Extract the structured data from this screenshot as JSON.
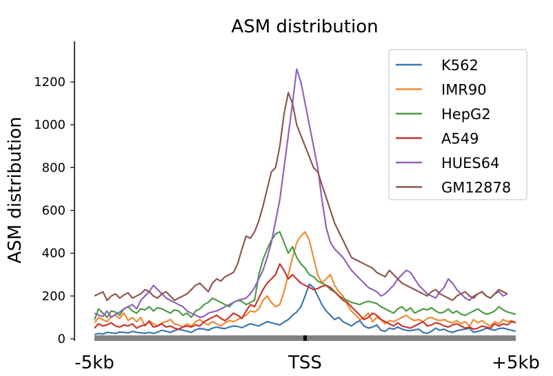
{
  "chart_data": {
    "type": "line",
    "title": "ASM distribution",
    "xlabel": "",
    "ylabel": "ASM distribution",
    "xlim": [
      -100,
      100
    ],
    "ylim": [
      0,
      1380
    ],
    "yticks": [
      0,
      200,
      400,
      600,
      800,
      1000,
      1200
    ],
    "xticks": [
      {
        "value": -100,
        "label": "-5kb"
      },
      {
        "value": 0,
        "label": "TSS"
      },
      {
        "value": 100,
        "label": "+5kb"
      }
    ],
    "x": {
      "start": -100,
      "end": 100,
      "step": 2
    },
    "legend_position": "top-right",
    "series": [
      {
        "name": "K562",
        "color": "#3a75b0",
        "values": [
          20,
          25,
          22,
          30,
          28,
          25,
          32,
          30,
          28,
          35,
          30,
          28,
          26,
          30,
          25,
          32,
          40,
          35,
          30,
          38,
          45,
          40,
          35,
          30,
          42,
          48,
          45,
          40,
          50,
          55,
          50,
          48,
          55,
          60,
          58,
          52,
          62,
          70,
          65,
          60,
          70,
          80,
          75,
          70,
          65,
          78,
          90,
          110,
          125,
          150,
          200,
          255,
          240,
          200,
          160,
          130,
          110,
          90,
          100,
          80,
          70,
          60,
          75,
          85,
          60,
          50,
          55,
          65,
          40,
          35,
          50,
          45,
          55,
          45,
          40,
          38,
          42,
          45,
          30,
          25,
          35,
          50,
          40,
          45,
          35,
          30,
          38,
          42,
          45,
          50,
          30,
          35,
          40,
          50,
          45,
          40,
          48,
          50,
          45,
          40,
          35
        ]
      },
      {
        "name": "IMR90",
        "color": "#f08a30",
        "values": [
          75,
          100,
          90,
          80,
          105,
          110,
          95,
          120,
          85,
          100,
          80,
          100,
          60,
          85,
          70,
          60,
          75,
          80,
          90,
          70,
          65,
          55,
          70,
          60,
          80,
          90,
          75,
          65,
          80,
          70,
          60,
          75,
          85,
          80,
          90,
          100,
          110,
          130,
          125,
          140,
          180,
          200,
          170,
          150,
          160,
          220,
          300,
          380,
          450,
          480,
          500,
          460,
          380,
          300,
          260,
          280,
          300,
          250,
          220,
          200,
          160,
          130,
          110,
          90,
          100,
          120,
          80,
          100,
          90,
          70,
          85,
          80,
          90,
          100,
          110,
          95,
          85,
          90,
          80,
          95,
          100,
          90,
          85,
          90,
          80,
          75,
          85,
          70,
          80,
          60,
          90,
          75,
          85,
          70,
          60,
          80,
          70,
          90,
          80,
          85,
          75
        ]
      },
      {
        "name": "HepG2",
        "color": "#4a9a42",
        "values": [
          90,
          140,
          120,
          100,
          130,
          125,
          110,
          140,
          150,
          130,
          120,
          140,
          135,
          150,
          130,
          145,
          140,
          130,
          120,
          135,
          130,
          110,
          120,
          100,
          130,
          140,
          160,
          170,
          190,
          180,
          170,
          160,
          150,
          170,
          180,
          175,
          160,
          170,
          180,
          300,
          370,
          420,
          460,
          490,
          500,
          450,
          400,
          430,
          380,
          350,
          330,
          300,
          290,
          270,
          260,
          250,
          230,
          220,
          200,
          190,
          180,
          170,
          165,
          160,
          170,
          175,
          170,
          165,
          150,
          140,
          130,
          120,
          140,
          150,
          130,
          145,
          120,
          130,
          140,
          135,
          145,
          130,
          120,
          125,
          140,
          120,
          130,
          115,
          110,
          120,
          130,
          140,
          125,
          115,
          120,
          130,
          150,
          135,
          125,
          120,
          115
        ]
      },
      {
        "name": "A549",
        "color": "#c8342e",
        "values": [
          50,
          70,
          60,
          65,
          75,
          60,
          55,
          65,
          60,
          70,
          50,
          60,
          65,
          80,
          55,
          60,
          70,
          55,
          60,
          50,
          45,
          55,
          60,
          55,
          65,
          60,
          80,
          90,
          100,
          110,
          95,
          85,
          100,
          120,
          110,
          95,
          130,
          160,
          150,
          190,
          230,
          260,
          280,
          300,
          350,
          320,
          280,
          300,
          280,
          260,
          250,
          240,
          230,
          235,
          245,
          250,
          240,
          220,
          200,
          180,
          170,
          150,
          130,
          110,
          90,
          100,
          120,
          110,
          90,
          80,
          70,
          60,
          75,
          60,
          55,
          50,
          60,
          70,
          80,
          60,
          65,
          75,
          70,
          60,
          55,
          65,
          70,
          60,
          50,
          55,
          45,
          50,
          60,
          55,
          50,
          70,
          60,
          70,
          65,
          80,
          75
        ]
      },
      {
        "name": "HUES64",
        "color": "#8f62b8",
        "values": [
          120,
          110,
          105,
          130,
          100,
          115,
          125,
          140,
          150,
          160,
          140,
          180,
          200,
          220,
          250,
          230,
          210,
          190,
          180,
          170,
          160,
          150,
          130,
          120,
          110,
          100,
          105,
          120,
          125,
          130,
          140,
          150,
          160,
          170,
          180,
          185,
          190,
          210,
          240,
          280,
          320,
          380,
          450,
          550,
          650,
          800,
          950,
          1100,
          1260,
          1200,
          1100,
          1000,
          900,
          800,
          650,
          520,
          450,
          420,
          400,
          380,
          350,
          320,
          300,
          280,
          260,
          240,
          230,
          220,
          200,
          210,
          230,
          250,
          280,
          300,
          320,
          310,
          280,
          250,
          230,
          210,
          200,
          190,
          220,
          240,
          280,
          260,
          230,
          210,
          190,
          180,
          200,
          210,
          220,
          200,
          190,
          210,
          220,
          200,
          210
        ]
      },
      {
        "name": "GM12878",
        "color": "#8c564b",
        "values": [
          200,
          210,
          220,
          180,
          200,
          210,
          190,
          205,
          215,
          190,
          200,
          210,
          230,
          220,
          200,
          190,
          210,
          220,
          200,
          180,
          190,
          200,
          210,
          230,
          250,
          260,
          240,
          220,
          260,
          280,
          270,
          290,
          300,
          310,
          350,
          420,
          480,
          470,
          500,
          550,
          620,
          700,
          780,
          800,
          900,
          1050,
          1150,
          1100,
          1000,
          950,
          900,
          850,
          800,
          780,
          720,
          660,
          600,
          540,
          500,
          460,
          420,
          380,
          370,
          360,
          350,
          340,
          330,
          310,
          300,
          290,
          320,
          300,
          280,
          260,
          250,
          240,
          230,
          220,
          210,
          200,
          220,
          230,
          210,
          200,
          190,
          180,
          200,
          210,
          220,
          200,
          190,
          210,
          220,
          200,
          190,
          210,
          230,
          220,
          210
        ]
      }
    ]
  }
}
